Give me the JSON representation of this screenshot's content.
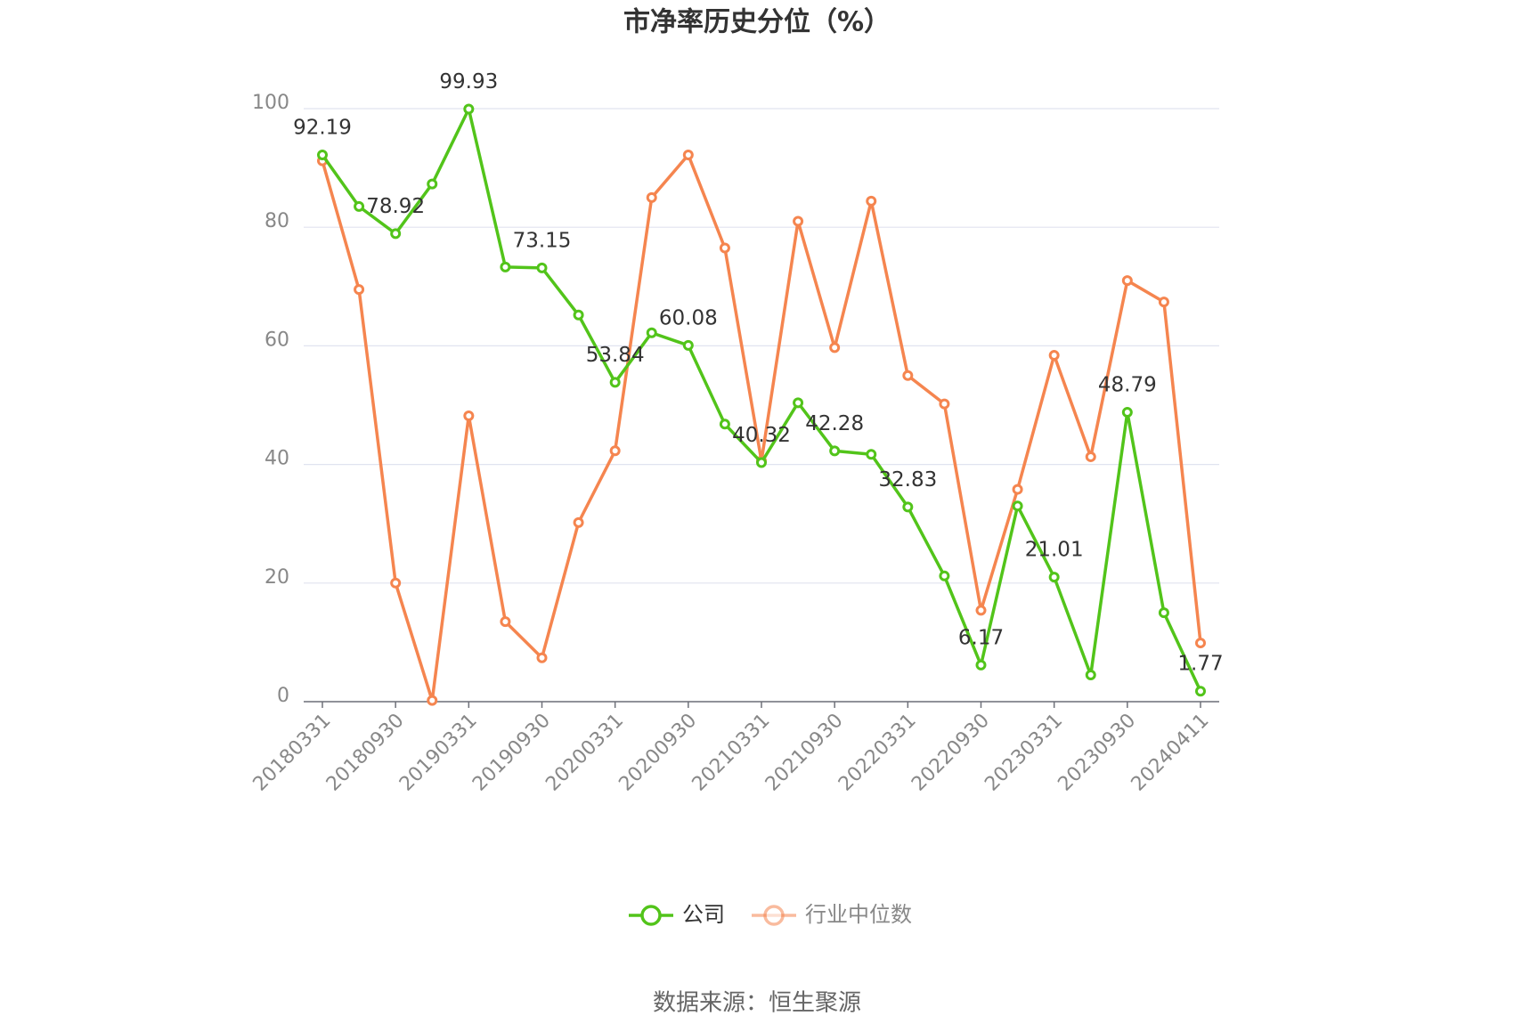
{
  "chart_data": {
    "type": "line",
    "title": "市净率历史分位（%）",
    "categories": [
      "20180331",
      null,
      "20180930",
      null,
      "20190331",
      null,
      "20190930",
      null,
      "20200331",
      null,
      "20200930",
      null,
      "20210331",
      null,
      "20210930",
      null,
      "20220331",
      null,
      "20220930",
      null,
      "20230331",
      null,
      "20230930",
      null,
      "20240411"
    ],
    "series": [
      {
        "name": "公司",
        "color": "#52c41a",
        "values": [
          92.19,
          83.5,
          78.92,
          87.3,
          99.93,
          73.3,
          73.15,
          65.2,
          53.84,
          62.2,
          60.08,
          46.8,
          40.32,
          50.4,
          42.28,
          41.7,
          32.83,
          21.2,
          6.17,
          33.0,
          21.01,
          4.5,
          48.79,
          15.0,
          1.77
        ]
      },
      {
        "name": "行业中位数",
        "color": "#f5854f",
        "values": [
          91.2,
          69.5,
          20.0,
          0.2,
          48.2,
          13.5,
          7.4,
          30.2,
          42.3,
          85.0,
          92.2,
          76.5,
          40.6,
          81.0,
          59.7,
          84.4,
          55.0,
          50.2,
          15.4,
          35.8,
          58.4,
          41.3,
          71.0,
          67.4,
          9.9
        ]
      }
    ],
    "ylim": [
      0,
      100
    ],
    "yticks": [
      0,
      20,
      40,
      60,
      80,
      100
    ],
    "grid": true,
    "source": "数据来源：恒生聚源"
  }
}
